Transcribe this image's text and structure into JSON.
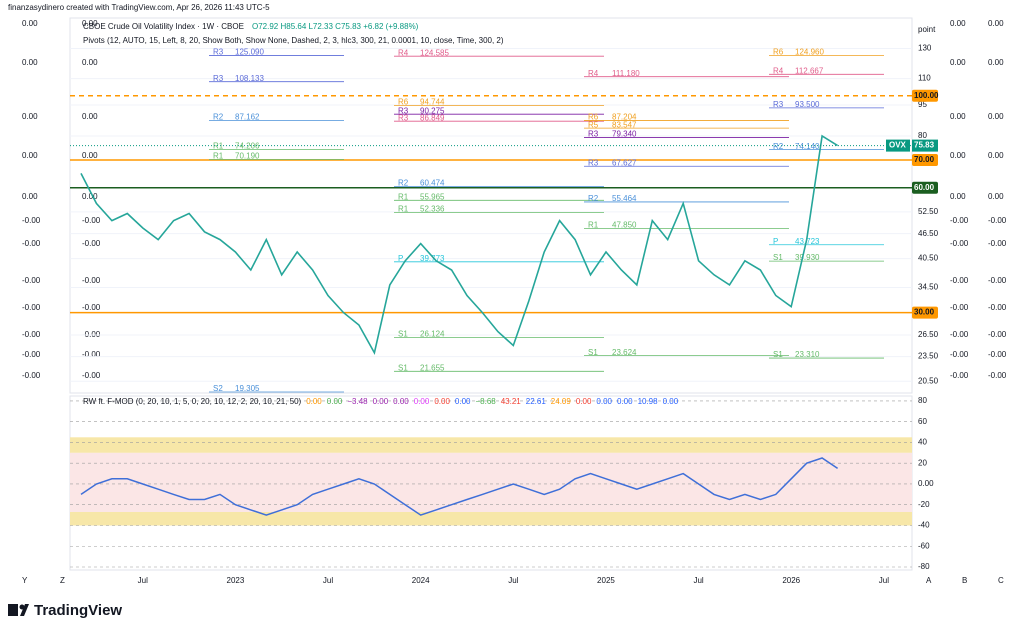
{
  "header": {
    "credit": "finanzasydinero created with TradingView.com, Apr 26, 2026 11:43 UTC-5",
    "symbol": "CBOE Crude Oil Volatility Index · 1W · CBOE",
    "ohlc": "O72.92 H85.64 L72.33 C75.83 +6.82 (+9.88%)",
    "pivots": "Pivots (12, AUTO, 15, Left, 8, 20, Show Both, Show None, Dashed, 2, 3, hlc3, 300, 21, 0.0001, 10, close, Time, 300, 2)",
    "axis_unit": "point"
  },
  "side_values": [
    "0.00",
    "0.00",
    "0.00",
    "0.00",
    "0.00",
    "-0.00",
    "-0.00",
    "-0.00",
    "-0.00",
    "-0.00",
    "-0.00",
    "-0.00"
  ],
  "corner_letters": {
    "left": [
      "Y",
      "Z"
    ],
    "right": [
      "A",
      "B",
      "C"
    ]
  },
  "footer": {
    "brand": "TradingView"
  },
  "chart_data": {
    "type": "line",
    "log_scale": true,
    "categories": [
      null,
      null,
      null,
      null,
      "Jul",
      null,
      null,
      null,
      null,
      null,
      "2023",
      null,
      null,
      null,
      null,
      null,
      "Jul",
      null,
      null,
      null,
      null,
      null,
      "2024",
      null,
      null,
      null,
      null,
      null,
      "Jul",
      null,
      null,
      null,
      null,
      null,
      "2025",
      null,
      null,
      null,
      null,
      null,
      "Jul",
      null,
      null,
      null,
      null,
      null,
      "2026",
      null,
      null,
      null,
      null,
      null,
      "Jul",
      null
    ],
    "series": [
      {
        "name": "OVX",
        "color": "#26a69a",
        "values": [
          65,
          55,
          50,
          52,
          48,
          45,
          50,
          52,
          47,
          45,
          42,
          38,
          45,
          37,
          42,
          38,
          33,
          30,
          28,
          24,
          35,
          40,
          44,
          40,
          38,
          33,
          30,
          27,
          25,
          32,
          42,
          50,
          45,
          37,
          42,
          38,
          35,
          50,
          45,
          55,
          40,
          37,
          35,
          40,
          38,
          33,
          31,
          45,
          80,
          75.83,
          null,
          null,
          null,
          null
        ]
      }
    ],
    "last_price": {
      "value": 75.83,
      "label": "75.83"
    },
    "ylim": [
      19.2,
      154
    ],
    "yticks": [
      130,
      110,
      95,
      80,
      {
        "value": 52.5,
        "label": "52.50"
      },
      {
        "value": 46.5,
        "label": "46.50"
      },
      {
        "value": 40.5,
        "label": "40.50"
      },
      {
        "value": 34.5,
        "label": "34.50"
      },
      {
        "value": 26.5,
        "label": "26.50"
      },
      {
        "value": 23.5,
        "label": "23.50"
      },
      {
        "value": 20.5,
        "label": "20.50"
      }
    ],
    "levels": [
      {
        "value": 100,
        "label": "100.00",
        "color": "#ff9800",
        "dashed": true
      },
      {
        "value": 70,
        "label": "70.00",
        "color": "#ff9800",
        "dashed": false
      },
      {
        "value": 60,
        "label": "60.00",
        "color": "#1b5e20",
        "dashed": false
      },
      {
        "value": 30,
        "label": "30.00",
        "color": "#ff9800",
        "dashed": false
      }
    ],
    "pivot_groups": [
      [
        {
          "name": "R3",
          "value": 125.09,
          "label": "125.090",
          "color": "#5b6bd8"
        },
        {
          "name": "R3",
          "value": 108.133,
          "label": "108.133",
          "color": "#5b6bd8"
        },
        {
          "name": "R2",
          "value": 87.162,
          "label": "87.162",
          "color": "#4a90d9"
        },
        {
          "name": "R1",
          "value": 74.206,
          "label": "74.206",
          "color": "#66bb6a"
        },
        {
          "name": "R1",
          "value": 70.19,
          "label": "70.190",
          "color": "#66bb6a"
        },
        {
          "name": "S2",
          "value": 19.305,
          "label": "19.305",
          "color": "#4a90d9"
        }
      ],
      [
        {
          "name": "R4",
          "value": 124.585,
          "label": "124.585",
          "color": "#e05c8a"
        },
        {
          "name": "R6",
          "value": 94.744,
          "label": "94.744",
          "color": "#f0a020"
        },
        {
          "name": "R3",
          "value": 90.275,
          "label": "90.275",
          "color": "#7b1fa2"
        },
        {
          "name": "R3",
          "value": 86.849,
          "label": "86.849",
          "color": "#e05c8a"
        },
        {
          "name": "R2",
          "value": 60.474,
          "label": "60.474",
          "color": "#4a90d9"
        },
        {
          "name": "R1",
          "value": 55.965,
          "label": "55.965",
          "color": "#66bb6a"
        },
        {
          "name": "R1",
          "value": 52.336,
          "label": "52.336",
          "color": "#66bb6a"
        },
        {
          "name": "P",
          "value": 39.773,
          "label": "39.773",
          "color": "#26c6da"
        },
        {
          "name": "S1",
          "value": 26.124,
          "label": "26.124",
          "color": "#66bb6a"
        },
        {
          "name": "S1",
          "value": 21.655,
          "label": "21.655",
          "color": "#66bb6a"
        }
      ],
      [
        {
          "name": "R4",
          "value": 111.18,
          "label": "111.180",
          "color": "#e05c8a"
        },
        {
          "name": "R6",
          "value": 87.204,
          "label": "87.204",
          "color": "#f0a020"
        },
        {
          "name": "R5",
          "value": 83.547,
          "label": "83.547",
          "color": "#f0a020"
        },
        {
          "name": "R3",
          "value": 79.34,
          "label": "79.340",
          "color": "#7b1fa2"
        },
        {
          "name": "R3",
          "value": 67.627,
          "label": "67.627",
          "color": "#5b6bd8"
        },
        {
          "name": "R2",
          "value": 55.464,
          "label": "55.464",
          "color": "#4a90d9"
        },
        {
          "name": "R1",
          "value": 47.85,
          "label": "47.850",
          "color": "#66bb6a"
        },
        {
          "name": "S1",
          "value": 23.624,
          "label": "23.624",
          "color": "#66bb6a"
        }
      ],
      [
        {
          "name": "R6",
          "value": 124.96,
          "label": "124.960",
          "color": "#f0a020"
        },
        {
          "name": "R4",
          "value": 112.667,
          "label": "112.667",
          "color": "#e05c8a"
        },
        {
          "name": "R3",
          "value": 93.5,
          "label": "93.500",
          "color": "#5b6bd8"
        },
        {
          "name": "R2",
          "value": 74.14,
          "label": "74.140",
          "color": "#4a90d9"
        },
        {
          "name": "P",
          "value": 43.723,
          "label": "43.723",
          "color": "#26c6da"
        },
        {
          "name": "S1",
          "value": 39.93,
          "label": "39.930",
          "color": "#66bb6a"
        },
        {
          "name": "S1",
          "value": 23.31,
          "label": "23.310",
          "color": "#66bb6a"
        }
      ]
    ],
    "oscillator": {
      "title": "RW ft. F-MOD (0, 20, 10, 1, 5, 0, 20, 10, 12, 2, 20, 10, 21, 50)",
      "readouts": [
        {
          "text": "0.00",
          "color": "#ff9800"
        },
        {
          "text": "0.00",
          "color": "#4caf50"
        },
        {
          "text": "−3.48",
          "color": "#9c27b0"
        },
        {
          "text": "0.00",
          "color": "#9c27b0"
        },
        {
          "text": "0.00",
          "color": "#9c27b0"
        },
        {
          "text": "0.00",
          "color": "#e040fb"
        },
        {
          "text": "0.00",
          "color": "#f44336"
        },
        {
          "text": "0.00",
          "color": "#2962ff"
        },
        {
          "text": "−8.68",
          "color": "#4caf50"
        },
        {
          "text": "43.21",
          "color": "#f44336"
        },
        {
          "text": "22.61",
          "color": "#2962ff"
        },
        {
          "text": "24.09",
          "color": "#ff9800"
        },
        {
          "text": "0.00",
          "color": "#f44336"
        },
        {
          "text": "0.00",
          "color": "#2962ff"
        },
        {
          "text": "0.00",
          "color": "#2962ff"
        },
        {
          "text": "10.98",
          "color": "#2962ff"
        },
        {
          "text": "0.00",
          "color": "#2962ff"
        }
      ],
      "color": "#3f6fd8",
      "values": [
        -10,
        0,
        5,
        5,
        0,
        -5,
        -10,
        -15,
        -15,
        -10,
        -20,
        -25,
        -30,
        -25,
        -20,
        -10,
        -5,
        0,
        5,
        0,
        -10,
        -20,
        -30,
        -25,
        -20,
        -15,
        -10,
        -5,
        0,
        -5,
        -10,
        -5,
        5,
        10,
        5,
        0,
        -5,
        0,
        5,
        10,
        0,
        -10,
        -15,
        -10,
        -15,
        -10,
        5,
        20,
        25,
        15,
        null,
        null,
        null,
        null
      ],
      "zones": [
        {
          "from": 30,
          "to": 45,
          "color": "#f7e7a8"
        },
        {
          "from": -30,
          "to": 30,
          "color": "#fbe6e6"
        },
        {
          "from": -40,
          "to": -27,
          "color": "#f7e7a8"
        }
      ],
      "ylim": [
        -82.9,
        84.8
      ],
      "yticks": [
        80,
        60,
        40,
        20,
        {
          "value": 0,
          "label": "0.00"
        },
        -20,
        -40,
        -60,
        -80
      ]
    }
  }
}
